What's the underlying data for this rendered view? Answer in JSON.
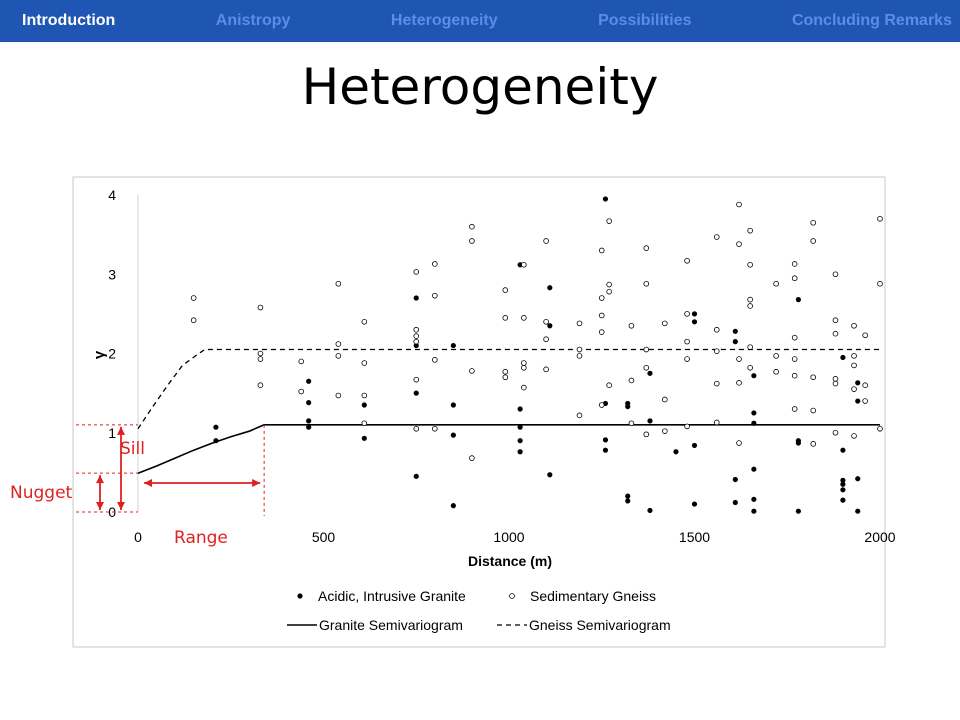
{
  "nav": {
    "items": [
      {
        "label": "Introduction",
        "active": true
      },
      {
        "label": "Anistropy",
        "active": false
      },
      {
        "label": "Heterogeneity",
        "active": false
      },
      {
        "label": "Possibilities",
        "active": false
      },
      {
        "label": "Concluding Remarks",
        "active": false
      }
    ]
  },
  "slide": {
    "title": "Heterogeneity"
  },
  "annotations": {
    "sill": "Sill",
    "nugget": "Nugget",
    "range": "Range",
    "color": "#e02020"
  },
  "chart_data": {
    "type": "scatter",
    "xlabel": "Distance (m)",
    "ylabel": "γ",
    "xlim": [
      0,
      2000
    ],
    "ylim": [
      0,
      4
    ],
    "x_ticks": [
      "0",
      "500",
      "1000",
      "1500",
      "2000"
    ],
    "y_ticks": [
      "0",
      "1",
      "2",
      "3",
      "4"
    ],
    "grid": false,
    "legend_position": "bottom",
    "series": [
      {
        "name": "Acidic, Intrusive Granite",
        "marker": "filled-circle",
        "points": [
          [
            210,
            1.07
          ],
          [
            210,
            0.9
          ],
          [
            460,
            1.65
          ],
          [
            460,
            1.38
          ],
          [
            460,
            1.15
          ],
          [
            460,
            1.07
          ],
          [
            610,
            1.35
          ],
          [
            610,
            0.93
          ],
          [
            750,
            2.7
          ],
          [
            750,
            2.1
          ],
          [
            750,
            1.5
          ],
          [
            750,
            0.45
          ],
          [
            850,
            2.1
          ],
          [
            850,
            1.35
          ],
          [
            850,
            0.97
          ],
          [
            850,
            0.08
          ],
          [
            1030,
            3.12
          ],
          [
            1030,
            1.3
          ],
          [
            1030,
            1.07
          ],
          [
            1030,
            0.9
          ],
          [
            1030,
            0.76
          ],
          [
            1110,
            2.35
          ],
          [
            1110,
            2.83
          ],
          [
            1110,
            0.47
          ],
          [
            1260,
            3.95
          ],
          [
            1260,
            1.37
          ],
          [
            1260,
            0.91
          ],
          [
            1260,
            0.78
          ],
          [
            1320,
            1.37
          ],
          [
            1320,
            1.33
          ],
          [
            1320,
            0.2
          ],
          [
            1320,
            0.14
          ],
          [
            1380,
            1.75
          ],
          [
            1380,
            1.15
          ],
          [
            1380,
            0.02
          ],
          [
            1450,
            0.76
          ],
          [
            1500,
            2.5
          ],
          [
            1500,
            2.4
          ],
          [
            1500,
            0.84
          ],
          [
            1500,
            0.1
          ],
          [
            1610,
            2.28
          ],
          [
            1610,
            2.15
          ],
          [
            1610,
            0.41
          ],
          [
            1610,
            0.12
          ],
          [
            1660,
            1.72
          ],
          [
            1660,
            1.25
          ],
          [
            1660,
            1.12
          ],
          [
            1660,
            0.54
          ],
          [
            1660,
            0.16
          ],
          [
            1660,
            0.01
          ],
          [
            1780,
            2.68
          ],
          [
            1780,
            0.9
          ],
          [
            1780,
            0.87
          ],
          [
            1780,
            0.01
          ],
          [
            1900,
            1.95
          ],
          [
            1900,
            0.78
          ],
          [
            1900,
            0.4
          ],
          [
            1900,
            0.35
          ],
          [
            1900,
            0.28
          ],
          [
            1900,
            0.15
          ],
          [
            1940,
            1.63
          ],
          [
            1940,
            1.4
          ],
          [
            1940,
            0.42
          ],
          [
            1940,
            0.01
          ]
        ]
      },
      {
        "name": "Sedimentary Gneiss",
        "marker": "open-circle",
        "points": [
          [
            150,
            2.7
          ],
          [
            150,
            2.42
          ],
          [
            330,
            2.58
          ],
          [
            330,
            2.0
          ],
          [
            330,
            1.93
          ],
          [
            330,
            1.6
          ],
          [
            440,
            1.9
          ],
          [
            440,
            1.52
          ],
          [
            540,
            2.88
          ],
          [
            540,
            2.12
          ],
          [
            540,
            1.97
          ],
          [
            540,
            1.47
          ],
          [
            610,
            2.4
          ],
          [
            610,
            1.88
          ],
          [
            610,
            1.47
          ],
          [
            610,
            1.12
          ],
          [
            750,
            3.03
          ],
          [
            750,
            2.3
          ],
          [
            750,
            2.22
          ],
          [
            750,
            2.15
          ],
          [
            750,
            1.67
          ],
          [
            750,
            1.05
          ],
          [
            800,
            3.13
          ],
          [
            800,
            2.73
          ],
          [
            800,
            1.92
          ],
          [
            800,
            1.05
          ],
          [
            900,
            3.6
          ],
          [
            900,
            3.42
          ],
          [
            900,
            1.78
          ],
          [
            900,
            0.68
          ],
          [
            990,
            2.8
          ],
          [
            990,
            2.45
          ],
          [
            990,
            1.77
          ],
          [
            990,
            1.7
          ],
          [
            1040,
            3.12
          ],
          [
            1040,
            2.45
          ],
          [
            1040,
            1.88
          ],
          [
            1040,
            1.82
          ],
          [
            1040,
            1.57
          ],
          [
            1100,
            3.42
          ],
          [
            1100,
            2.18
          ],
          [
            1100,
            2.4
          ],
          [
            1100,
            1.8
          ],
          [
            1190,
            2.38
          ],
          [
            1190,
            2.05
          ],
          [
            1190,
            1.97
          ],
          [
            1190,
            1.22
          ],
          [
            1250,
            3.3
          ],
          [
            1250,
            2.7
          ],
          [
            1250,
            2.48
          ],
          [
            1250,
            2.27
          ],
          [
            1250,
            1.35
          ],
          [
            1270,
            3.67
          ],
          [
            1270,
            2.87
          ],
          [
            1270,
            2.78
          ],
          [
            1270,
            1.6
          ],
          [
            1330,
            2.35
          ],
          [
            1330,
            1.66
          ],
          [
            1330,
            1.12
          ],
          [
            1370,
            3.33
          ],
          [
            1370,
            2.88
          ],
          [
            1370,
            2.05
          ],
          [
            1370,
            1.82
          ],
          [
            1370,
            0.98
          ],
          [
            1420,
            2.38
          ],
          [
            1420,
            1.42
          ],
          [
            1420,
            1.02
          ],
          [
            1480,
            3.17
          ],
          [
            1480,
            2.5
          ],
          [
            1480,
            2.15
          ],
          [
            1480,
            1.93
          ],
          [
            1480,
            1.08
          ],
          [
            1560,
            3.47
          ],
          [
            1560,
            2.3
          ],
          [
            1560,
            2.03
          ],
          [
            1560,
            1.62
          ],
          [
            1560,
            1.13
          ],
          [
            1620,
            3.88
          ],
          [
            1620,
            3.38
          ],
          [
            1620,
            1.93
          ],
          [
            1620,
            1.63
          ],
          [
            1620,
            0.87
          ],
          [
            1650,
            3.55
          ],
          [
            1650,
            3.12
          ],
          [
            1650,
            2.68
          ],
          [
            1650,
            2.6
          ],
          [
            1650,
            2.08
          ],
          [
            1650,
            1.82
          ],
          [
            1720,
            2.88
          ],
          [
            1720,
            1.97
          ],
          [
            1720,
            1.77
          ],
          [
            1770,
            3.13
          ],
          [
            1770,
            2.95
          ],
          [
            1770,
            2.2
          ],
          [
            1770,
            1.93
          ],
          [
            1770,
            1.72
          ],
          [
            1770,
            1.3
          ],
          [
            1820,
            3.65
          ],
          [
            1820,
            3.42
          ],
          [
            1820,
            1.7
          ],
          [
            1820,
            1.28
          ],
          [
            1820,
            0.86
          ],
          [
            1880,
            3.0
          ],
          [
            1880,
            2.42
          ],
          [
            1880,
            2.25
          ],
          [
            1880,
            1.68
          ],
          [
            1880,
            1.62
          ],
          [
            1880,
            1.0
          ],
          [
            1930,
            2.35
          ],
          [
            1930,
            1.97
          ],
          [
            1930,
            1.85
          ],
          [
            1930,
            1.55
          ],
          [
            1930,
            0.96
          ],
          [
            1960,
            2.23
          ],
          [
            1960,
            1.6
          ],
          [
            1960,
            1.4
          ],
          [
            2000,
            3.7
          ],
          [
            2000,
            2.88
          ],
          [
            2000,
            1.05
          ]
        ]
      },
      {
        "name": "Granite Semivariogram",
        "line": "solid",
        "points": [
          [
            0,
            0.49
          ],
          [
            50,
            0.58
          ],
          [
            100,
            0.68
          ],
          [
            150,
            0.78
          ],
          [
            200,
            0.87
          ],
          [
            250,
            0.95
          ],
          [
            300,
            1.02
          ],
          [
            340,
            1.1
          ],
          [
            2000,
            1.1
          ]
        ]
      },
      {
        "name": "Gneiss Semivariogram",
        "line": "dashed",
        "points": [
          [
            0,
            1.05
          ],
          [
            40,
            1.33
          ],
          [
            80,
            1.6
          ],
          [
            120,
            1.85
          ],
          [
            155,
            1.97
          ],
          [
            180,
            2.05
          ],
          [
            2000,
            2.05
          ]
        ]
      }
    ]
  }
}
